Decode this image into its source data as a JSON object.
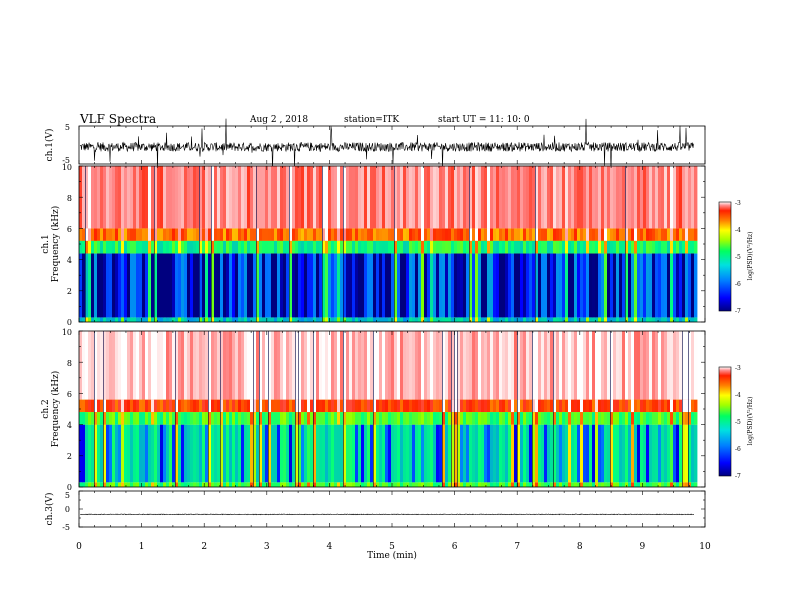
{
  "header": {
    "title": "VLF Spectra",
    "date": "Aug 2 , 2018",
    "station": "station=ITK",
    "start_ut": "start UT = 11: 10: 0"
  },
  "colors": {
    "waveform": "#000000",
    "colormap": [
      "#00007f",
      "#0000ff",
      "#0080ff",
      "#00c0c0",
      "#00ff80",
      "#80ff00",
      "#ffff00",
      "#ff8000",
      "#ff2000",
      "#ff8080",
      "#ffffff"
    ]
  },
  "chart_data": [
    {
      "type": "line",
      "panel": "ch1-waveform",
      "ylabel": "ch.1(V)",
      "ylim": [
        -5,
        5
      ],
      "yticks": [
        "5",
        "-5"
      ],
      "xlim": [
        0,
        10
      ],
      "description_values": {
        "baseline_v": -0.5,
        "noise_amplitude_v": 1.2
      }
    },
    {
      "type": "heatmap",
      "panel": "ch1-spectrogram",
      "ylabel_line1": "ch.1",
      "ylabel_line2": "Frequency (kHz)",
      "ylim": [
        0,
        10
      ],
      "yticks": [
        "0",
        "2",
        "4",
        "6",
        "8",
        "10"
      ],
      "xlim": [
        0,
        10
      ],
      "colorbar": {
        "label": "log(PSD)(V²/Hz)",
        "range": [
          -7,
          -3
        ],
        "ticks": [
          "-3",
          "-4",
          "-5",
          "-6",
          "-7"
        ]
      },
      "band_levels": [
        {
          "freq_khz": [
            0,
            0.3
          ],
          "log_psd": -5.8
        },
        {
          "freq_khz": [
            0.3,
            4.4
          ],
          "log_psd": -6.3
        },
        {
          "freq_khz": [
            4.4,
            6.0
          ],
          "log_psd": -4.8
        },
        {
          "freq_khz": [
            6.0,
            10
          ],
          "log_psd": -3.4
        }
      ]
    },
    {
      "type": "heatmap",
      "panel": "ch2-spectrogram",
      "ylabel_line1": "ch.2",
      "ylabel_line2": "Frequency (kHz)",
      "ylim": [
        0,
        10
      ],
      "yticks": [
        "0",
        "2",
        "4",
        "6",
        "8",
        "10"
      ],
      "xlim": [
        0,
        10
      ],
      "colorbar": {
        "label": "log(PSD)(V²/Hz)",
        "range": [
          -7,
          -3
        ],
        "ticks": [
          "-3",
          "-4",
          "-5",
          "-6",
          "-7"
        ]
      },
      "band_levels": [
        {
          "freq_khz": [
            0,
            0.3
          ],
          "log_psd": -5.2
        },
        {
          "freq_khz": [
            0.3,
            4.0
          ],
          "log_psd": -5.6
        },
        {
          "freq_khz": [
            4.0,
            5.6
          ],
          "log_psd": -4.6
        },
        {
          "freq_khz": [
            5.6,
            10
          ],
          "log_psd": -3.2
        }
      ]
    },
    {
      "type": "line",
      "panel": "ch3-waveform",
      "ylabel": "ch.3(V)",
      "ylim": [
        -5,
        5
      ],
      "yticks": [
        "5",
        "0",
        "-5"
      ],
      "xlim": [
        0,
        10
      ],
      "xlabel": "Time (min)",
      "xticks": [
        "0",
        "1",
        "2",
        "3",
        "4",
        "5",
        "6",
        "7",
        "8",
        "9",
        "10"
      ],
      "description_values": {
        "baseline_v": -1.5,
        "noise_amplitude_v": 0.1
      }
    }
  ]
}
